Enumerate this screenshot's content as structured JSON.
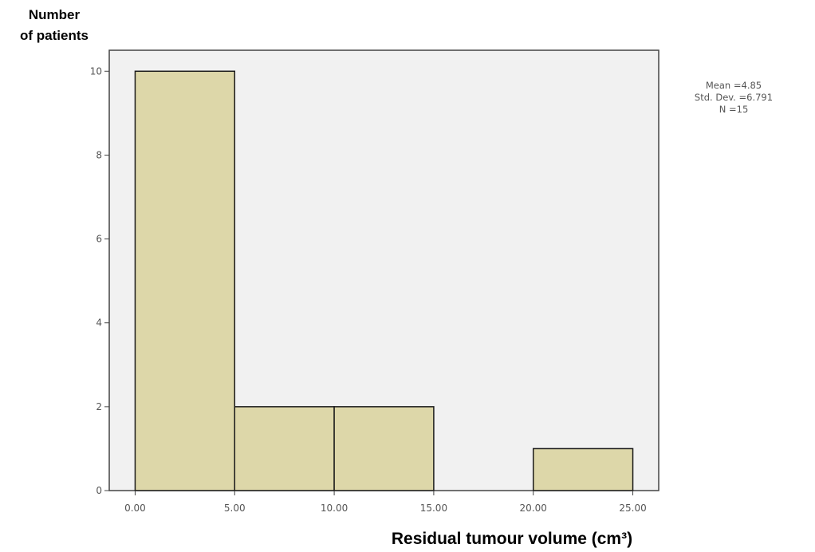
{
  "chart_data": {
    "type": "histogram",
    "ylabel_lines": [
      "Number",
      "of patients"
    ],
    "xlabel": "Residual tumour volume (cm³)",
    "bins": [
      {
        "start": 0,
        "end": 5,
        "count": 10
      },
      {
        "start": 5,
        "end": 10,
        "count": 2
      },
      {
        "start": 10,
        "end": 15,
        "count": 2
      },
      {
        "start": 15,
        "end": 20,
        "count": 0
      },
      {
        "start": 20,
        "end": 25,
        "count": 1
      }
    ],
    "xlim": [
      -1.3,
      26.3
    ],
    "ylim": [
      0,
      10.5
    ],
    "x_ticks": [
      0,
      5,
      10,
      15,
      20,
      25
    ],
    "x_tick_labels": [
      "0.00",
      "5.00",
      "10.00",
      "15.00",
      "20.00",
      "25.00"
    ],
    "y_ticks": [
      0,
      2,
      4,
      6,
      8,
      10
    ],
    "y_tick_labels": [
      "0",
      "2",
      "4",
      "6",
      "8",
      "10"
    ],
    "stats_lines": [
      "Mean =4.85",
      "Std. Dev. =6.791",
      "N =15"
    ],
    "colors": {
      "bar_fill": "#ddd7a9",
      "bar_stroke": "#1a1a1a",
      "plot_bg": "#f1f1f1",
      "axis": "#444444"
    },
    "grid": false
  }
}
